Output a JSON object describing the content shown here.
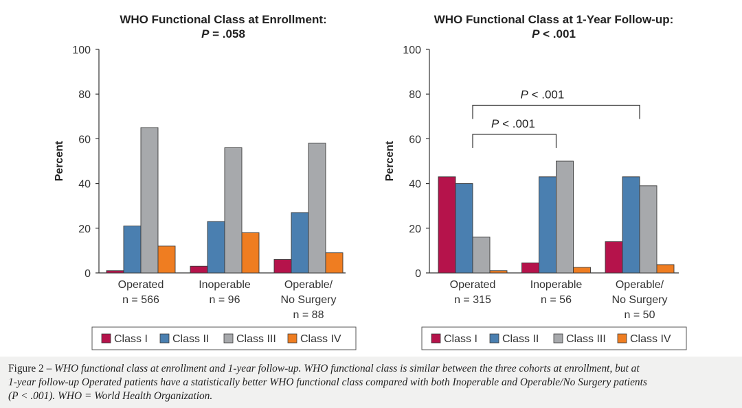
{
  "chart_data": [
    {
      "type": "bar",
      "title": "WHO Functional Class at Enrollment:",
      "subtitle_label": "P",
      "subtitle_value": " = .058",
      "ylabel": "Percent",
      "ylim": [
        0,
        100
      ],
      "yticks": [
        0,
        20,
        40,
        60,
        80,
        100
      ],
      "categories": [
        {
          "lines": [
            "Operated",
            "n = 566"
          ]
        },
        {
          "lines": [
            "Inoperable",
            "n = 96"
          ]
        },
        {
          "lines": [
            "Operable/",
            "No Surgery",
            "n = 88"
          ]
        }
      ],
      "series": [
        {
          "name": "Class I",
          "color": "#b5134b",
          "values": [
            1,
            3,
            6
          ]
        },
        {
          "name": "Class II",
          "color": "#4a7fb0",
          "values": [
            21,
            23,
            27
          ]
        },
        {
          "name": "Class III",
          "color": "#a7a9ac",
          "values": [
            65,
            56,
            58
          ]
        },
        {
          "name": "Class IV",
          "color": "#ef7d21",
          "values": [
            12,
            18,
            9
          ]
        }
      ],
      "annotations": []
    },
    {
      "type": "bar",
      "title": "WHO Functional Class at 1-Year Follow-up:",
      "subtitle_label": "P",
      "subtitle_value": " < .001",
      "ylabel": "Percent",
      "ylim": [
        0,
        100
      ],
      "yticks": [
        0,
        20,
        40,
        60,
        80,
        100
      ],
      "categories": [
        {
          "lines": [
            "Operated",
            "n = 315"
          ]
        },
        {
          "lines": [
            "Inoperable",
            "n = 56"
          ]
        },
        {
          "lines": [
            "Operable/",
            "No Surgery",
            "n = 50"
          ]
        }
      ],
      "series": [
        {
          "name": "Class I",
          "color": "#b5134b",
          "values": [
            43,
            4.5,
            14
          ]
        },
        {
          "name": "Class II",
          "color": "#4a7fb0",
          "values": [
            40,
            43,
            43
          ]
        },
        {
          "name": "Class III",
          "color": "#a7a9ac",
          "values": [
            16,
            50,
            39
          ]
        },
        {
          "name": "Class IV",
          "color": "#ef7d21",
          "values": [
            1,
            2.5,
            3.7
          ]
        }
      ],
      "annotations": [
        {
          "label": "P",
          "value": " < .001",
          "from_category": 0,
          "to_category": 1,
          "level": 62
        },
        {
          "label": "P",
          "value": " < .001",
          "from_category": 0,
          "to_category": 2,
          "level": 75
        }
      ]
    }
  ],
  "caption": {
    "lead": "Figure 2 – ",
    "line1": "WHO functional class at enrollment and 1-year follow-up. WHO functional class is similar between the three cohorts at enrollment, but at",
    "line2": "1-year follow-up Operated patients have a statistically better WHO functional class compared with both Inoperable and Operable/No Surgery patients",
    "line3": "(P < .001). WHO = World Health Organization."
  }
}
